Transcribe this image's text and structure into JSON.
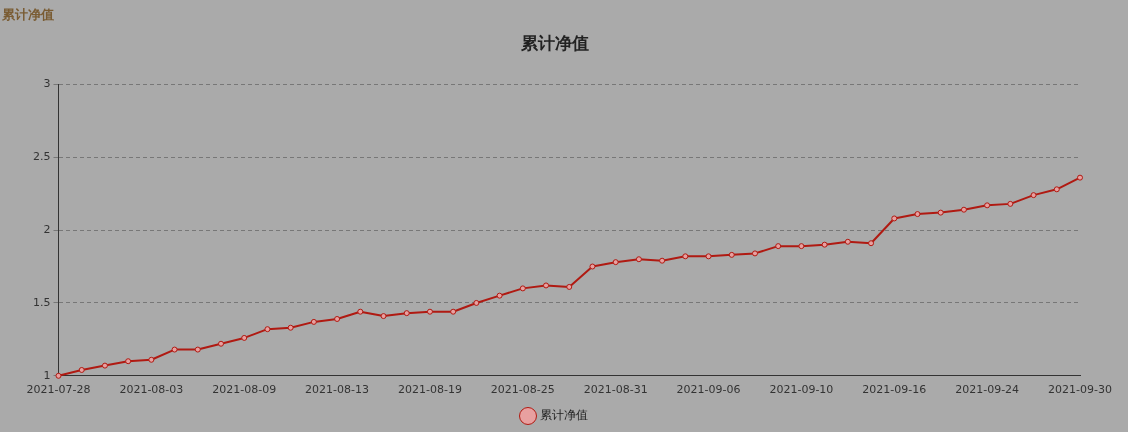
{
  "chart_data": {
    "type": "line",
    "title": "累计净值",
    "annotations": [
      "累计净值"
    ],
    "categories": [
      "2021-07-28",
      null,
      null,
      null,
      "2021-08-03",
      null,
      null,
      null,
      "2021-08-09",
      null,
      null,
      null,
      "2021-08-13",
      null,
      null,
      null,
      "2021-08-19",
      null,
      null,
      null,
      "2021-08-25",
      null,
      null,
      null,
      "2021-08-31",
      null,
      null,
      null,
      "2021-09-06",
      null,
      null,
      null,
      "2021-09-10",
      null,
      null,
      null,
      "2021-09-16",
      null,
      null,
      null,
      "2021-09-24",
      null,
      null,
      null,
      "2021-09-30"
    ],
    "series": [
      {
        "name": "累计净值",
        "color": "#b01a12",
        "values": [
          1.0,
          1.04,
          1.07,
          1.1,
          1.11,
          1.18,
          1.18,
          1.22,
          1.26,
          1.32,
          1.33,
          1.37,
          1.39,
          1.44,
          1.41,
          1.43,
          1.44,
          1.44,
          1.5,
          1.55,
          1.6,
          1.62,
          1.61,
          1.75,
          1.78,
          1.8,
          1.79,
          1.82,
          1.82,
          1.83,
          1.84,
          1.89,
          1.89,
          1.9,
          1.92,
          1.91,
          2.08,
          2.11,
          2.12,
          2.14,
          2.17,
          2.18,
          2.24,
          2.28,
          2.36
        ]
      }
    ],
    "ylim": [
      1,
      3
    ],
    "yticks": [
      1,
      1.5,
      2,
      2.5,
      3
    ],
    "grid": "y",
    "legend": "bottom",
    "marker": "circle",
    "line_style": "solid"
  }
}
